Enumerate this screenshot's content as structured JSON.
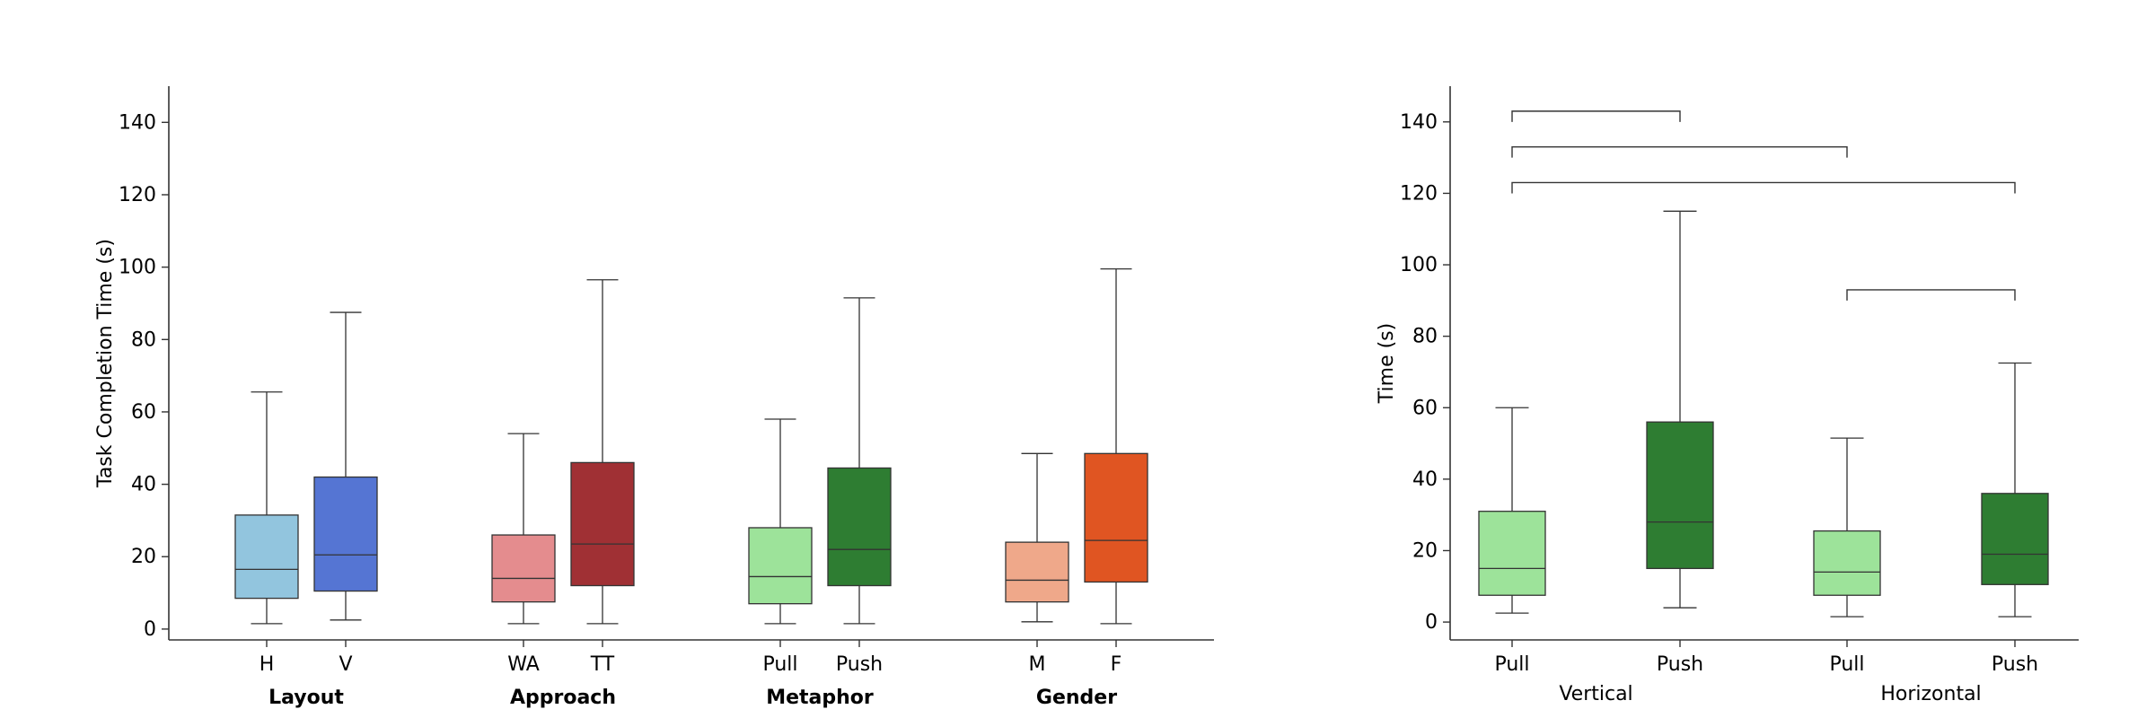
{
  "chart_data": [
    {
      "type": "box",
      "ylabel": "Task Completion Time (s)",
      "xlabel": "",
      "ylim": [
        -3,
        150
      ],
      "yticks": [
        0,
        20,
        40,
        60,
        80,
        100,
        120,
        140
      ],
      "grid": false,
      "groups": [
        {
          "label": "Layout",
          "boxes": [
            {
              "label": "H",
              "color": "#92c5de",
              "whislo": 1.5,
              "q1": 8.5,
              "med": 16.5,
              "q3": 31.5,
              "whishi": 65.5
            },
            {
              "label": "V",
              "color": "#5575d3",
              "whislo": 2.5,
              "q1": 10.5,
              "med": 20.5,
              "q3": 42,
              "whishi": 87.5
            }
          ]
        },
        {
          "label": "Approach",
          "boxes": [
            {
              "label": "WA",
              "color": "#e48c8e",
              "whislo": 1.5,
              "q1": 7.5,
              "med": 14,
              "q3": 26,
              "whishi": 54
            },
            {
              "label": "TT",
              "color": "#a03034",
              "whislo": 1.5,
              "q1": 12,
              "med": 23.5,
              "q3": 46,
              "whishi": 96.5
            }
          ]
        },
        {
          "label": "Metaphor",
          "boxes": [
            {
              "label": "Pull",
              "color": "#9de39a",
              "whislo": 1.5,
              "q1": 7,
              "med": 14.5,
              "q3": 28,
              "whishi": 58
            },
            {
              "label": "Push",
              "color": "#2e7d32",
              "whislo": 1.5,
              "q1": 12,
              "med": 22,
              "q3": 44.5,
              "whishi": 91.5
            }
          ]
        },
        {
          "label": "Gender",
          "boxes": [
            {
              "label": "M",
              "color": "#efa88a",
              "whislo": 2,
              "q1": 7.5,
              "med": 13.5,
              "q3": 24,
              "whishi": 48.5
            },
            {
              "label": "F",
              "color": "#e05522",
              "whislo": 1.5,
              "q1": 13,
              "med": 24.5,
              "q3": 48.5,
              "whishi": 99.5
            }
          ]
        }
      ]
    },
    {
      "type": "box",
      "ylabel": "Time (s)",
      "xlabel": "",
      "ylim": [
        -5,
        150
      ],
      "yticks": [
        0,
        20,
        40,
        60,
        80,
        100,
        120,
        140
      ],
      "grid": false,
      "boxes": [
        {
          "label": "Pull",
          "color": "#9de39a",
          "whislo": 2.5,
          "q1": 7.5,
          "med": 15,
          "q3": 31,
          "whishi": 60
        },
        {
          "label": "Push",
          "color": "#2e7d32",
          "whislo": 4,
          "q1": 15,
          "med": 28,
          "q3": 56,
          "whishi": 115
        },
        {
          "label": "Pull",
          "color": "#9de39a",
          "whislo": 1.5,
          "q1": 7.5,
          "med": 14,
          "q3": 25.5,
          "whishi": 51.5
        },
        {
          "label": "Push",
          "color": "#2e7d32",
          "whislo": 1.5,
          "q1": 10.5,
          "med": 19,
          "q3": 36,
          "whishi": 72.5
        }
      ],
      "outer_groups": [
        {
          "label": "Vertical",
          "boxes": [
            0,
            1
          ]
        },
        {
          "label": "Horizontal",
          "boxes": [
            2,
            3
          ]
        }
      ],
      "brackets": [
        {
          "from": 0,
          "to": 1,
          "y": 143
        },
        {
          "from": 0,
          "to": 2,
          "y": 133
        },
        {
          "from": 0,
          "to": 3,
          "y": 123
        },
        {
          "from": 2,
          "to": 3,
          "y": 93
        }
      ]
    }
  ]
}
